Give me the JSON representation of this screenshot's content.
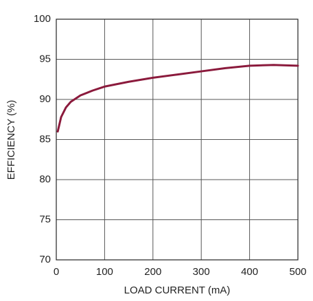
{
  "chart_data": {
    "type": "line",
    "x_label": "LOAD CURRENT (mA)",
    "y_label": "EFFICIENCY (%)",
    "x": [
      3,
      10,
      20,
      30,
      50,
      75,
      100,
      150,
      200,
      250,
      300,
      350,
      400,
      450,
      500
    ],
    "values": [
      86,
      87.8,
      89,
      89.7,
      90.5,
      91.1,
      91.6,
      92.2,
      92.7,
      93.1,
      93.5,
      93.9,
      94.2,
      94.3,
      94.2
    ],
    "color": "#8b1a3c",
    "xlim": [
      0,
      500
    ],
    "xticks": [
      0,
      100,
      200,
      300,
      400,
      500
    ],
    "ylim": [
      70,
      100
    ],
    "yticks": [
      70,
      75,
      80,
      85,
      90,
      95,
      100
    ],
    "grid": true
  }
}
